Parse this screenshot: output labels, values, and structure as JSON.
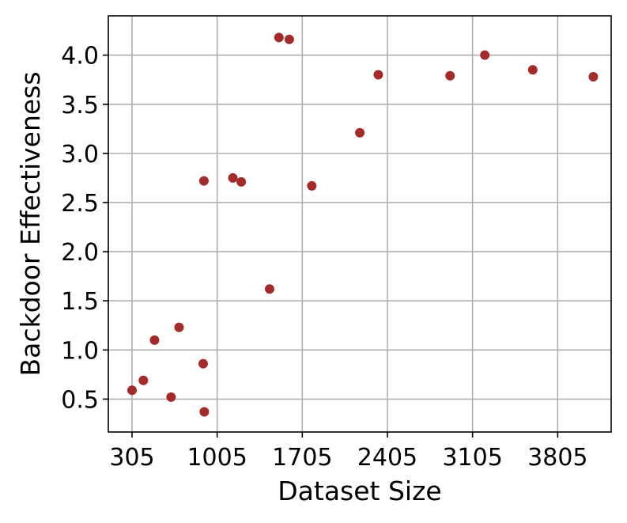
{
  "chart_data": {
    "type": "scatter",
    "title": "",
    "xlabel": "Dataset Size",
    "ylabel": "Backdoor Effectiveness",
    "xlim": [
      110,
      4245
    ],
    "ylim": [
      0.165,
      4.4
    ],
    "xticks": [
      305,
      1005,
      1705,
      2405,
      3105,
      3805
    ],
    "xtick_labels": [
      "305",
      "1005",
      "1705",
      "2405",
      "3105",
      "3805"
    ],
    "yticks": [
      0.5,
      1.0,
      1.5,
      2.0,
      2.5,
      3.0,
      3.5,
      4.0
    ],
    "ytick_labels": [
      "0.5",
      "1.0",
      "1.5",
      "2.0",
      "2.5",
      "3.0",
      "3.5",
      "4.0"
    ],
    "grid": true,
    "legend": "none",
    "marker_color": "#a52a2a",
    "series": [
      {
        "points": [
          {
            "x": 305,
            "y": 0.59
          },
          {
            "x": 398,
            "y": 0.69
          },
          {
            "x": 490,
            "y": 1.1
          },
          {
            "x": 626,
            "y": 0.52
          },
          {
            "x": 692,
            "y": 1.23
          },
          {
            "x": 890,
            "y": 0.86
          },
          {
            "x": 896,
            "y": 2.72
          },
          {
            "x": 899,
            "y": 0.37
          },
          {
            "x": 1134,
            "y": 2.75
          },
          {
            "x": 1203,
            "y": 2.71
          },
          {
            "x": 1436,
            "y": 1.62
          },
          {
            "x": 1513,
            "y": 4.18
          },
          {
            "x": 1598,
            "y": 4.16
          },
          {
            "x": 1783,
            "y": 2.67
          },
          {
            "x": 2178,
            "y": 3.21
          },
          {
            "x": 2330,
            "y": 3.8
          },
          {
            "x": 2920,
            "y": 3.79
          },
          {
            "x": 3206,
            "y": 4.0
          },
          {
            "x": 3600,
            "y": 3.85
          },
          {
            "x": 4098,
            "y": 3.78
          }
        ]
      }
    ]
  }
}
